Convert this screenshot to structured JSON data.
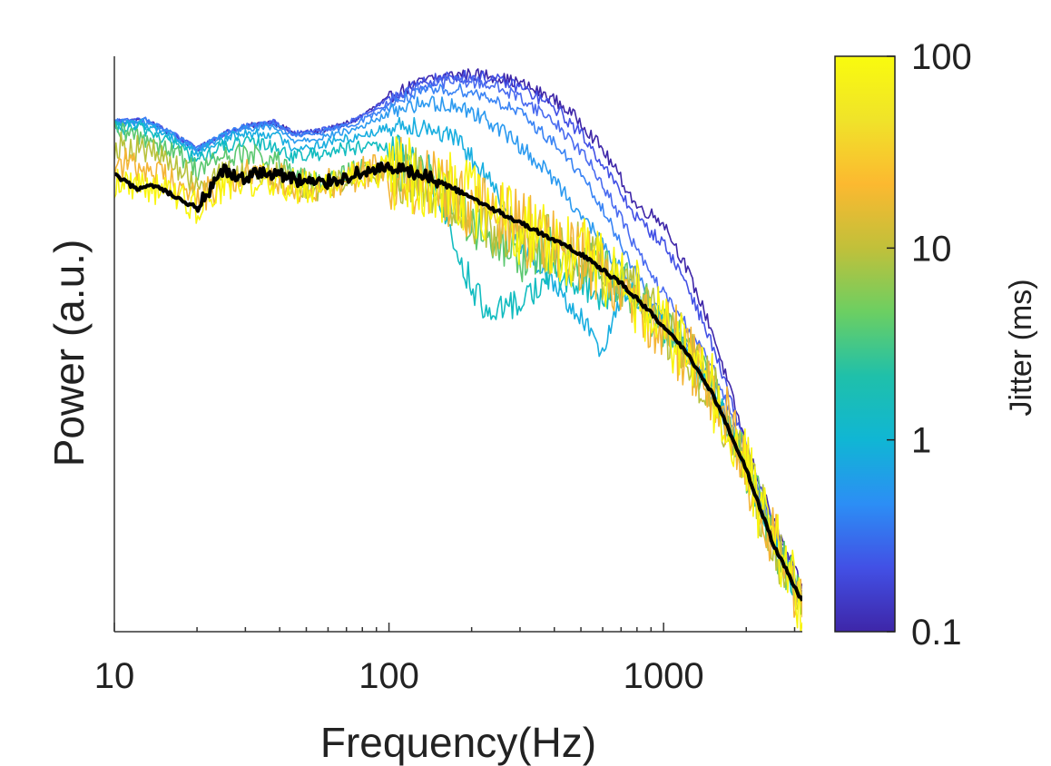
{
  "chart_data": {
    "type": "line",
    "title": "",
    "xlabel": "Frequency(Hz)",
    "ylabel": "Power (a.u.)",
    "x_scale": "log",
    "xlim": [
      10,
      3200
    ],
    "x_ticks": [
      {
        "value": 10,
        "label": "10"
      },
      {
        "value": 100,
        "label": "100"
      },
      {
        "value": 1000,
        "label": "1000"
      }
    ],
    "y_scale": "log",
    "ylim": [
      0.02,
      200
    ],
    "y_ticks_shown": false,
    "grid": false,
    "legend": "none",
    "colorbar": {
      "label": "Jitter (ms)",
      "scale": "log",
      "range": [
        0.1,
        100
      ],
      "ticks": [
        {
          "value": 0.1,
          "label": "0.1"
        },
        {
          "value": 1,
          "label": "1"
        },
        {
          "value": 10,
          "label": "10"
        },
        {
          "value": 100,
          "label": "100"
        }
      ],
      "colors": [
        "#3e26a8",
        "#4250e5",
        "#2c8ef5",
        "#10b6d4",
        "#1fc0aa",
        "#6ccf62",
        "#c1c03a",
        "#fcb930",
        "#f0e329",
        "#f9fb0e"
      ]
    },
    "series": [
      {
        "jitter": 0.1,
        "color": "#3e26a8",
        "noise": 0.02,
        "x": [
          10,
          13,
          17,
          20,
          25,
          30,
          38,
          45,
          55,
          65,
          75,
          90,
          110,
          140,
          180,
          230,
          300,
          400,
          500,
          600,
          700,
          800,
          900,
          1000,
          1200,
          1500,
          2000,
          2500,
          3200
        ],
        "y": [
          70,
          72,
          55,
          45,
          58,
          65,
          70,
          58,
          60,
          65,
          72,
          90,
          115,
          138,
          150,
          148,
          130,
          100,
          70,
          45,
          28,
          18,
          16,
          14,
          7,
          2.5,
          0.4,
          0.12,
          0.04
        ]
      },
      {
        "jitter": 0.2,
        "color": "#4250e5",
        "noise": 0.02,
        "x": [
          10,
          13,
          17,
          20,
          25,
          30,
          38,
          45,
          55,
          65,
          75,
          90,
          110,
          140,
          180,
          230,
          300,
          400,
          500,
          600,
          700,
          800,
          900,
          1000,
          1200,
          1500,
          2000,
          2500,
          3200
        ],
        "y": [
          70,
          72,
          55,
          45,
          58,
          65,
          70,
          58,
          60,
          65,
          72,
          88,
          112,
          135,
          146,
          142,
          122,
          88,
          58,
          36,
          22,
          15,
          12,
          10,
          5.5,
          2.0,
          0.38,
          0.11,
          0.038
        ]
      },
      {
        "jitter": 0.3,
        "color": "#4a6bf0",
        "noise": 0.02,
        "x": [
          10,
          13,
          17,
          20,
          25,
          30,
          38,
          45,
          55,
          65,
          75,
          90,
          110,
          140,
          180,
          230,
          300,
          400,
          500,
          600,
          700,
          800,
          900,
          1000,
          1200,
          1500,
          2000,
          2500,
          3200
        ],
        "y": [
          70,
          72,
          55,
          45,
          58,
          65,
          70,
          58,
          60,
          65,
          72,
          85,
          108,
          128,
          136,
          128,
          104,
          70,
          44,
          26,
          15,
          9,
          6,
          4.5,
          2.8,
          1.4,
          0.33,
          0.1,
          0.036
        ]
      },
      {
        "jitter": 0.5,
        "color": "#3a84f5",
        "noise": 0.02,
        "x": [
          10,
          13,
          17,
          20,
          25,
          30,
          38,
          45,
          55,
          65,
          75,
          90,
          110,
          140,
          180,
          230,
          300,
          400,
          500,
          600,
          700,
          800,
          900,
          1000,
          1200,
          1500,
          2000,
          2500,
          3200
        ],
        "y": [
          70,
          72,
          55,
          45,
          58,
          65,
          68,
          56,
          58,
          63,
          68,
          80,
          100,
          115,
          118,
          105,
          80,
          50,
          30,
          17,
          10,
          6,
          4,
          3.0,
          2.0,
          1.1,
          0.3,
          0.09,
          0.035
        ]
      },
      {
        "jitter": 1,
        "color": "#2c9af0",
        "noise": 0.025,
        "x": [
          10,
          13,
          17,
          20,
          25,
          30,
          38,
          45,
          55,
          65,
          75,
          90,
          110,
          140,
          180,
          230,
          300,
          400,
          500,
          600,
          700,
          800,
          900,
          1000,
          1200,
          1500,
          2000,
          2500,
          3200
        ],
        "y": [
          68,
          70,
          54,
          44,
          56,
          62,
          64,
          52,
          54,
          58,
          62,
          72,
          88,
          95,
          90,
          72,
          48,
          28,
          16,
          10,
          6.5,
          4.5,
          3.5,
          2.8,
          1.9,
          1.0,
          0.29,
          0.09,
          0.034
        ]
      },
      {
        "jitter": 2,
        "color": "#18aee0",
        "noise": 0.035,
        "x": [
          10,
          13,
          17,
          20,
          25,
          30,
          38,
          45,
          55,
          65,
          75,
          90,
          110,
          140,
          180,
          230,
          300,
          400,
          500,
          600,
          700,
          800,
          900,
          1000,
          1200,
          1500,
          2000,
          2500,
          3200
        ],
        "y": [
          66,
          67,
          52,
          42,
          53,
          58,
          58,
          46,
          48,
          52,
          55,
          60,
          68,
          65,
          50,
          28,
          10,
          5,
          3,
          1.8,
          4.5,
          4,
          3.2,
          2.6,
          1.8,
          0.95,
          0.28,
          0.085,
          0.033
        ]
      },
      {
        "jitter": 4,
        "color": "#12bcc0",
        "noise": 0.05,
        "x": [
          10,
          13,
          17,
          20,
          25,
          30,
          38,
          45,
          55,
          65,
          75,
          90,
          110,
          140,
          180,
          230,
          300,
          400,
          500,
          600,
          700,
          800,
          900,
          1000,
          1200,
          1500,
          2000,
          2500,
          3200
        ],
        "y": [
          63,
          62,
          48,
          38,
          47,
          50,
          48,
          40,
          42,
          45,
          46,
          46,
          44,
          32,
          8,
          3,
          4,
          6,
          5,
          4,
          5.5,
          4.2,
          3.3,
          2.6,
          1.8,
          0.95,
          0.28,
          0.085,
          0.033
        ]
      },
      {
        "jitter": 8,
        "color": "#5cc870",
        "noise": 0.08,
        "x": [
          10,
          13,
          17,
          20,
          25,
          30,
          38,
          45,
          55,
          65,
          75,
          90,
          110,
          140,
          180,
          230,
          300,
          400,
          500,
          600,
          700,
          800,
          900,
          1000,
          1200,
          1500,
          2000,
          2500,
          3200
        ],
        "y": [
          58,
          55,
          42,
          33,
          40,
          42,
          38,
          30,
          26,
          30,
          32,
          33,
          32,
          26,
          18,
          10,
          8,
          9,
          8,
          6.5,
          5.5,
          4.2,
          3.3,
          2.6,
          1.8,
          0.95,
          0.28,
          0.085,
          0.033
        ]
      },
      {
        "jitter": 15,
        "color": "#b8c23c",
        "noise": 0.1,
        "x": [
          10,
          13,
          17,
          20,
          25,
          30,
          38,
          45,
          55,
          65,
          75,
          90,
          110,
          140,
          180,
          230,
          300,
          400,
          500,
          600,
          700,
          800,
          900,
          1000,
          1200,
          1500,
          2000,
          2500,
          3200
        ],
        "y": [
          48,
          45,
          34,
          26,
          30,
          31,
          30,
          27,
          24,
          28,
          30,
          32,
          31,
          26,
          20,
          14,
          11,
          10,
          8.5,
          6.5,
          5.5,
          4.2,
          3.3,
          2.6,
          1.8,
          0.95,
          0.28,
          0.085,
          0.033
        ]
      },
      {
        "jitter": 30,
        "color": "#f4b535",
        "noise": 0.12,
        "x": [
          10,
          13,
          17,
          20,
          25,
          30,
          38,
          45,
          55,
          65,
          75,
          90,
          110,
          140,
          180,
          230,
          300,
          400,
          500,
          600,
          700,
          800,
          900,
          1000,
          1200,
          1500,
          2000,
          2500,
          3200
        ],
        "y": [
          36,
          34,
          26,
          20,
          27,
          30,
          29,
          26,
          24,
          28,
          30,
          32,
          31,
          27,
          22,
          17,
          13,
          10,
          8.5,
          6.5,
          5.5,
          4.2,
          3.3,
          2.6,
          1.8,
          0.95,
          0.28,
          0.085,
          0.033
        ]
      },
      {
        "jitter": 100,
        "color": "#f9f50e",
        "noise": 0.12,
        "x": [
          10,
          13,
          17,
          20,
          25,
          30,
          38,
          45,
          55,
          65,
          75,
          90,
          110,
          140,
          180,
          230,
          300,
          400,
          500,
          600,
          700,
          800,
          900,
          1000,
          1200,
          1500,
          2000,
          2500,
          3200
        ],
        "y": [
          26,
          26,
          21,
          18,
          25,
          27,
          28,
          25,
          24,
          28,
          30,
          32,
          31,
          27,
          22,
          17,
          13,
          10,
          8.5,
          6.5,
          5.5,
          4.2,
          3.3,
          2.6,
          1.8,
          0.95,
          0.28,
          0.085,
          0.033
        ]
      }
    ],
    "mean_series": {
      "color": "#000000",
      "x": [
        10,
        12,
        14,
        16,
        18,
        20,
        22,
        25,
        28,
        32,
        38,
        45,
        55,
        65,
        75,
        90,
        110,
        130,
        150,
        180,
        230,
        300,
        400,
        500,
        600,
        700,
        800,
        900,
        1000,
        1200,
        1500,
        2000,
        2500,
        3200
      ],
      "y": [
        30,
        24,
        25,
        22,
        19,
        18,
        22,
        32,
        28,
        30,
        31,
        28,
        26,
        28,
        30,
        33,
        32,
        30,
        27,
        23,
        18,
        14,
        10.5,
        8.5,
        6.5,
        5.3,
        4.1,
        3.3,
        2.6,
        1.8,
        0.92,
        0.27,
        0.082,
        0.032
      ]
    }
  }
}
